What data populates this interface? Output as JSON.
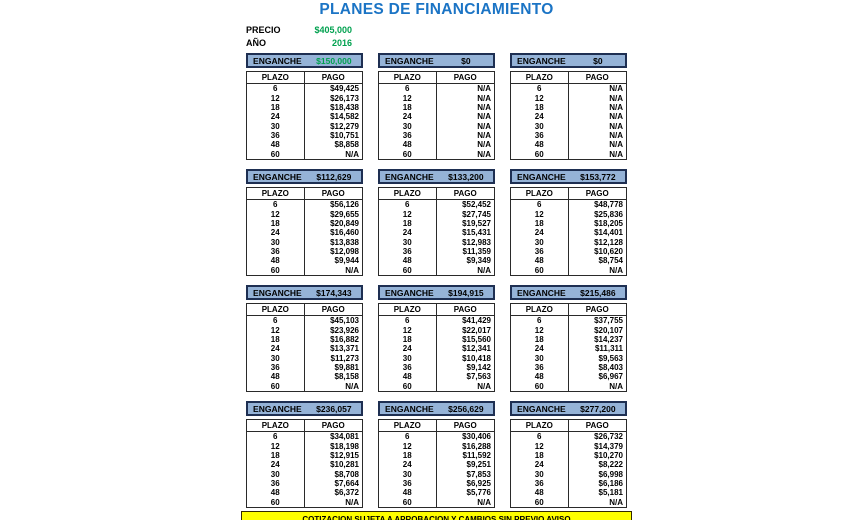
{
  "title": "PLANES DE FINANCIAMIENTO",
  "info": {
    "precio_label": "PRECIO",
    "precio_value": "$405,000",
    "anio_label": "AÑO",
    "anio_value": "2016"
  },
  "labels": {
    "enganche": "ENGANCHE",
    "plazo": "PLAZO",
    "pago": "PAGO"
  },
  "plazos": [
    6,
    12,
    18,
    24,
    30,
    36,
    48,
    60
  ],
  "tables": [
    {
      "enganche": "$150,000",
      "value_color": "green",
      "pagos": [
        "$49,425",
        "$26,173",
        "$18,438",
        "$14,582",
        "$12,279",
        "$10,751",
        "$8,858",
        "N/A"
      ]
    },
    {
      "enganche": "$0",
      "value_color": "black",
      "pagos": [
        "N/A",
        "N/A",
        "N/A",
        "N/A",
        "N/A",
        "N/A",
        "N/A",
        "N/A"
      ]
    },
    {
      "enganche": "$0",
      "value_color": "black",
      "pagos": [
        "N/A",
        "N/A",
        "N/A",
        "N/A",
        "N/A",
        "N/A",
        "N/A",
        "N/A"
      ]
    },
    {
      "enganche": "$112,629",
      "value_color": "black",
      "pagos": [
        "$56,126",
        "$29,655",
        "$20,849",
        "$16,460",
        "$13,838",
        "$12,098",
        "$9,944",
        "N/A"
      ]
    },
    {
      "enganche": "$133,200",
      "value_color": "black",
      "pagos": [
        "$52,452",
        "$27,745",
        "$19,527",
        "$15,431",
        "$12,983",
        "$11,359",
        "$9,349",
        "N/A"
      ]
    },
    {
      "enganche": "$153,772",
      "value_color": "black",
      "pagos": [
        "$48,778",
        "$25,836",
        "$18,205",
        "$14,401",
        "$12,128",
        "$10,620",
        "$8,754",
        "N/A"
      ]
    },
    {
      "enganche": "$174,343",
      "value_color": "black",
      "pagos": [
        "$45,103",
        "$23,926",
        "$16,882",
        "$13,371",
        "$11,273",
        "$9,881",
        "$8,158",
        "N/A"
      ]
    },
    {
      "enganche": "$194,915",
      "value_color": "black",
      "pagos": [
        "$41,429",
        "$22,017",
        "$15,560",
        "$12,341",
        "$10,418",
        "$9,142",
        "$7,563",
        "N/A"
      ]
    },
    {
      "enganche": "$215,486",
      "value_color": "black",
      "pagos": [
        "$37,755",
        "$20,107",
        "$14,237",
        "$11,311",
        "$9,563",
        "$8,403",
        "$6,967",
        "N/A"
      ]
    },
    {
      "enganche": "$236,057",
      "value_color": "black",
      "pagos": [
        "$34,081",
        "$18,198",
        "$12,915",
        "$10,281",
        "$8,708",
        "$7,664",
        "$6,372",
        "N/A"
      ]
    },
    {
      "enganche": "$256,629",
      "value_color": "black",
      "pagos": [
        "$30,406",
        "$16,288",
        "$11,592",
        "$9,251",
        "$7,853",
        "$6,925",
        "$5,776",
        "N/A"
      ]
    },
    {
      "enganche": "$277,200",
      "value_color": "black",
      "pagos": [
        "$26,732",
        "$14,379",
        "$10,270",
        "$8,222",
        "$6,998",
        "$6,186",
        "$5,181",
        "N/A"
      ]
    }
  ],
  "footer": {
    "notice": "COTIZACION SUJETA A APROBACION Y CAMBIOS SIN PREVIO AVISO"
  },
  "colors": {
    "title_blue": "#1b74c5",
    "green": "#00a14f",
    "header_blue": "#95b3d7",
    "notice_yellow": "#ffff00"
  }
}
